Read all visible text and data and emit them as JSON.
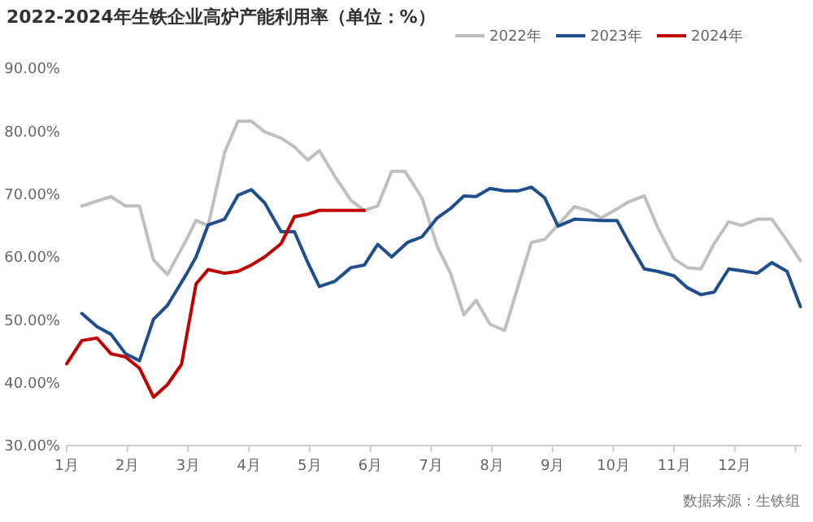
{
  "chart_data": {
    "type": "line",
    "title": "2022-2024年生铁企业高炉产能利用率（单位：%）",
    "annotations": [
      "数据来源：生铁组"
    ],
    "legend": "top",
    "grid": false,
    "marker": "none",
    "line_style": "solid",
    "xlim": [
      1,
      13.1
    ],
    "xticks": [
      {
        "value": 1,
        "label": "1月"
      },
      {
        "value": 2,
        "label": "2月"
      },
      {
        "value": 3,
        "label": "3月"
      },
      {
        "value": 4,
        "label": "4月"
      },
      {
        "value": 5,
        "label": "5月"
      },
      {
        "value": 6,
        "label": "6月"
      },
      {
        "value": 7,
        "label": "7月"
      },
      {
        "value": 8,
        "label": "8月"
      },
      {
        "value": 9,
        "label": "9月"
      },
      {
        "value": 10,
        "label": "10月"
      },
      {
        "value": 11,
        "label": "11月"
      },
      {
        "value": 12,
        "label": "12月"
      },
      {
        "value": 13,
        "label": null
      }
    ],
    "ylim": [
      30,
      90
    ],
    "yticks": [
      {
        "value": 30,
        "label": "30.00%"
      },
      {
        "value": 40,
        "label": "40.00%"
      },
      {
        "value": 50,
        "label": "50.00%"
      },
      {
        "value": 60,
        "label": "60.00%"
      },
      {
        "value": 70,
        "label": "70.00%"
      },
      {
        "value": 80,
        "label": "80.00%"
      },
      {
        "value": 90,
        "label": "90.00%"
      }
    ],
    "series": [
      {
        "name": "2022年",
        "color": "#bfbfbf",
        "x": [
          1.25,
          1.73,
          1.97,
          2.2,
          2.43,
          2.66,
          2.98,
          3.13,
          3.33,
          3.6,
          3.82,
          4.04,
          4.26,
          4.53,
          4.75,
          4.97,
          5.16,
          5.41,
          5.68,
          5.9,
          6.12,
          6.35,
          6.57,
          6.85,
          7.1,
          7.32,
          7.54,
          7.74,
          7.97,
          8.21,
          8.43,
          8.65,
          8.87,
          9.09,
          9.36,
          9.58,
          9.8,
          10.02,
          10.24,
          10.51,
          10.73,
          11,
          11.22,
          11.44,
          11.66,
          11.9,
          12.11,
          12.37,
          12.61,
          12.86,
          13.08
        ],
        "values": [
          68.1,
          69.6,
          68.1,
          68.1,
          59.5,
          57.2,
          62.9,
          65.8,
          65,
          76.6,
          81.6,
          81.6,
          79.9,
          78.9,
          77.5,
          75.4,
          76.9,
          72.9,
          69,
          67.4,
          68.1,
          73.6,
          73.6,
          69.4,
          61.7,
          57.4,
          50.8,
          53.1,
          49.3,
          48.3,
          55.3,
          62.3,
          62.8,
          65.1,
          68,
          67.4,
          66.2,
          67.4,
          68.7,
          69.7,
          64.7,
          59.7,
          58.3,
          58.1,
          62.1,
          65.6,
          65,
          66,
          66,
          62.6,
          59.4
        ]
      },
      {
        "name": "2023年",
        "color": "#1f4e8c",
        "x": [
          1.25,
          1.5,
          1.73,
          1.97,
          2.2,
          2.43,
          2.66,
          2.98,
          3.13,
          3.33,
          3.6,
          3.82,
          4.04,
          4.26,
          4.53,
          4.75,
          4.97,
          5.16,
          5.41,
          5.68,
          5.9,
          6.12,
          6.35,
          6.61,
          6.85,
          7.1,
          7.32,
          7.54,
          7.74,
          7.97,
          8.21,
          8.43,
          8.65,
          8.87,
          9.09,
          9.36,
          9.58,
          9.8,
          10.06,
          10.24,
          10.51,
          10.73,
          11,
          11.22,
          11.44,
          11.66,
          11.9,
          12.11,
          12.37,
          12.61,
          12.86,
          13.08
        ],
        "values": [
          51,
          48.9,
          47.7,
          44.6,
          43.5,
          50.1,
          52.3,
          57.4,
          60,
          65.1,
          66,
          69.8,
          70.7,
          68.6,
          64,
          64,
          59.1,
          55.3,
          56.1,
          58.3,
          58.7,
          62,
          60,
          62.3,
          63.2,
          66.2,
          67.7,
          69.7,
          69.6,
          70.9,
          70.5,
          70.5,
          71.1,
          69.4,
          64.9,
          66,
          65.9,
          65.8,
          65.8,
          62.6,
          58.1,
          57.7,
          57,
          55.1,
          54,
          54.4,
          58.1,
          57.8,
          57.4,
          59.1,
          57.7,
          52.1
        ]
      },
      {
        "name": "2024年",
        "color": "#c00000",
        "x": [
          1,
          1.25,
          1.5,
          1.73,
          1.97,
          2.2,
          2.43,
          2.66,
          2.89,
          3.13,
          3.33,
          3.6,
          3.82,
          4.04,
          4.26,
          4.53,
          4.75,
          4.97,
          5.16,
          5.41,
          5.68,
          5.9
        ],
        "values": [
          43,
          46.7,
          47.1,
          44.6,
          44.1,
          42.3,
          37.7,
          39.7,
          42.9,
          55.7,
          58,
          57.4,
          57.7,
          58.7,
          60,
          62.1,
          66.4,
          66.8,
          67.4,
          67.4,
          67.4,
          67.4
        ]
      }
    ]
  }
}
